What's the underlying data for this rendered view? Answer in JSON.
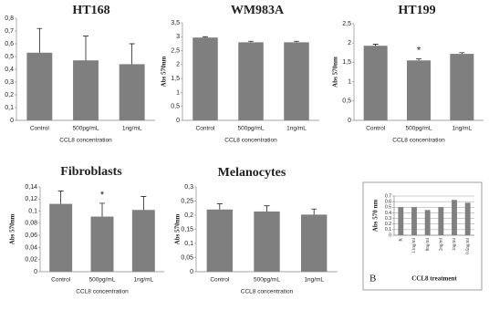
{
  "chart_data": [
    {
      "type": "bar",
      "title": "HT168",
      "x_label": "CCL8 concentration",
      "categories": [
        "Control",
        "500pg/mL",
        "1ng/mL"
      ],
      "values": [
        0.53,
        0.47,
        0.44
      ],
      "errors": [
        0.19,
        0.19,
        0.16
      ],
      "color": "#7f7f7f",
      "ylim": [
        0,
        0.8
      ],
      "yticks": [
        0,
        {
          "value": 0.1,
          "label": "0,1"
        },
        {
          "value": 0.2,
          "label": "0,2"
        },
        {
          "value": 0.3,
          "label": "0,3"
        },
        {
          "value": 0.4,
          "label": "0,4"
        },
        {
          "value": 0.5,
          "label": "0,5"
        },
        {
          "value": 0.6,
          "label": "0,6"
        },
        {
          "value": 0.7,
          "label": "0,7"
        },
        {
          "value": 0.8,
          "label": "0,8"
        }
      ]
    },
    {
      "type": "bar",
      "title": "WM983A",
      "x_label": "CCL8 concentration",
      "y_label": "Abs 570nm",
      "categories": [
        "Control",
        "500pg/mL",
        "1ng/mL"
      ],
      "values": [
        2.97,
        2.8,
        2.8
      ],
      "errors": [
        0.03,
        0.04,
        0.04
      ],
      "color": "#7f7f7f",
      "ylim": [
        0,
        3.5
      ],
      "yticks": [
        0,
        {
          "value": 0.5,
          "label": "0,5"
        },
        1,
        {
          "value": 1.5,
          "label": "1,5"
        },
        2,
        {
          "value": 2.5,
          "label": "2,5"
        },
        3,
        {
          "value": 3.5,
          "label": "3,5"
        }
      ]
    },
    {
      "type": "bar",
      "title": "HT199",
      "x_label": "CCL8 concentration",
      "y_label": "Abs 570nm",
      "annotation": "*",
      "categories": [
        "Control",
        "500pg/mL",
        "1ng/mL"
      ],
      "values": [
        1.93,
        1.55,
        1.72
      ],
      "errors": [
        0.04,
        0.04,
        0.03
      ],
      "color": "#7f7f7f",
      "ylim": [
        0,
        2.5
      ],
      "yticks": [
        0,
        {
          "value": 0.5,
          "label": "0,5"
        },
        1,
        {
          "value": 1.5,
          "label": "1,5"
        },
        2,
        {
          "value": 2.5,
          "label": "2,5"
        }
      ]
    },
    {
      "type": "bar",
      "title": "Fibroblasts",
      "x_label": "CCL8 concentration",
      "y_label": "Abs 570nm",
      "annotation": "*",
      "categories": [
        "Control",
        "500pg/mL",
        "1ng/mL"
      ],
      "values": [
        0.112,
        0.091,
        0.102
      ],
      "errors": [
        0.021,
        0.022,
        0.022
      ],
      "color": "#7f7f7f",
      "ylim": [
        0,
        0.14
      ],
      "yticks": [
        0,
        {
          "value": 0.02,
          "label": "0,02"
        },
        {
          "value": 0.04,
          "label": "0,04"
        },
        {
          "value": 0.06,
          "label": "0,06"
        },
        {
          "value": 0.08,
          "label": "0,08"
        },
        {
          "value": 0.1,
          "label": "0,1"
        },
        {
          "value": 0.12,
          "label": "0,12"
        },
        {
          "value": 0.14,
          "label": "0,14"
        }
      ]
    },
    {
      "type": "bar",
      "title": "Melanocytes",
      "x_label": "CCL8 concentration",
      "y_label": "Abs 570nm",
      "categories": [
        "Control",
        "500pg/mL",
        "1ng/mL"
      ],
      "values": [
        0.22,
        0.213,
        0.202
      ],
      "errors": [
        0.02,
        0.02,
        0.02
      ],
      "color": "#7f7f7f",
      "ylim": [
        0,
        0.3
      ],
      "yticks": [
        0,
        {
          "value": 0.05,
          "label": "0,05"
        },
        {
          "value": 0.1,
          "label": "0,1"
        },
        {
          "value": 0.15,
          "label": "0,15"
        },
        {
          "value": 0.2,
          "label": "0,2"
        },
        {
          "value": 0.25,
          "label": "0,25"
        },
        {
          "value": 0.3,
          "label": "0,3"
        }
      ]
    },
    {
      "type": "bar",
      "panel_label": "B",
      "x_label": "CCL8 treatment",
      "y_label": "Abs 570 nm",
      "grid": true,
      "categories": [
        "K",
        "11ng/ml",
        "8ng/ml",
        "2ng/ml",
        "1ng/ml",
        "0.5ng/ml"
      ],
      "values": [
        0.5,
        0.5,
        0.45,
        0.5,
        0.63,
        0.58
      ],
      "color": "#808080",
      "ylim": [
        0,
        0.7
      ],
      "yticks": [
        0,
        0.1,
        0.2,
        0.3,
        0.4,
        0.5,
        0.6,
        0.7
      ]
    }
  ]
}
